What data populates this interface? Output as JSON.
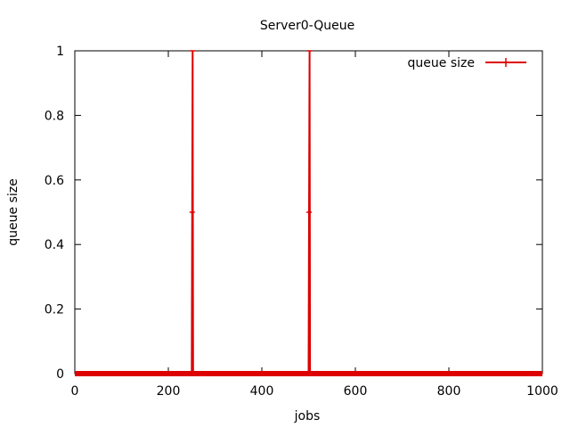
{
  "chart_data": {
    "type": "line",
    "title": "Server0-Queue",
    "xlabel": "jobs",
    "ylabel": "queue size",
    "xlim": [
      0,
      1000
    ],
    "ylim": [
      0,
      1
    ],
    "x_ticks": [
      0,
      200,
      400,
      600,
      800,
      1000
    ],
    "y_ticks": [
      0,
      0.2,
      0.4,
      0.6,
      0.8,
      1
    ],
    "grid": false,
    "legend_position": "top-right",
    "series": [
      {
        "name": "queue size",
        "color": "#dd0000",
        "x": [
          0,
          250,
          251,
          252,
          253,
          500,
          501,
          502,
          503,
          1000
        ],
        "y": [
          0,
          0,
          0.5,
          1,
          0,
          0,
          0.5,
          1,
          0,
          0
        ]
      }
    ]
  }
}
